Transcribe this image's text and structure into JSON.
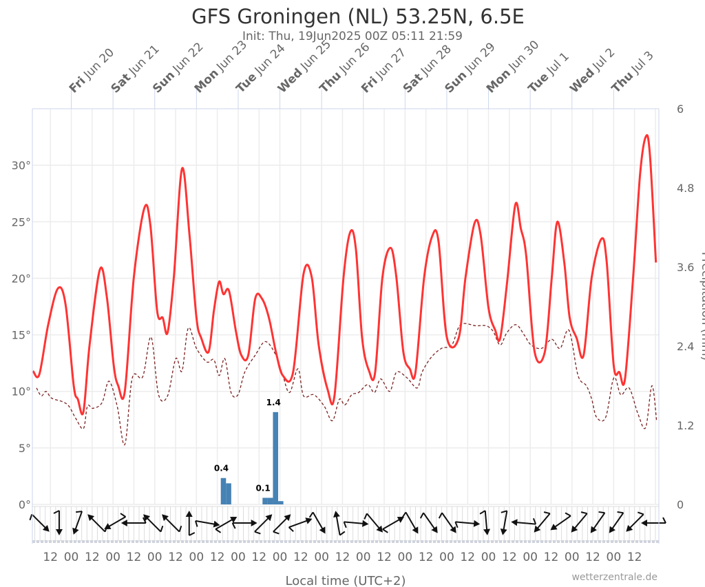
{
  "chart_data": {
    "type": "line",
    "title": "GFS Groningen (NL) 53.25N, 6.5E",
    "subtitle": "Init: Thu, 19Jun2025 00Z 05:11 21:59",
    "xlabel": "Local time (UTC+2)",
    "x_units": "hours since Thu 19 Jun 2025 02:00 local",
    "xlim": [
      0,
      360
    ],
    "ylabel_left": "",
    "ylabel_right": "Precipitation (mm)",
    "ylim_left": [
      0,
      35
    ],
    "ylim_right": [
      0,
      6
    ],
    "left_ticks": [
      "0°",
      "5°",
      "10°",
      "15°",
      "20°",
      "25°",
      "30°"
    ],
    "left_tick_values": [
      0,
      5,
      10,
      15,
      20,
      25,
      30
    ],
    "right_ticks": [
      "0",
      "1.2",
      "2.4",
      "3.6",
      "4.8",
      "6"
    ],
    "right_tick_values": [
      0,
      1.2,
      2.4,
      3.6,
      4.8,
      6
    ],
    "grid": true,
    "day_labels": [
      {
        "dow": "Fri",
        "date": "Jun 20"
      },
      {
        "dow": "Sat",
        "date": "Jun 21"
      },
      {
        "dow": "Sun",
        "date": "Jun 22"
      },
      {
        "dow": "Mon",
        "date": "Jun 23"
      },
      {
        "dow": "Tue",
        "date": "Jun 24"
      },
      {
        "dow": "Wed",
        "date": "Jun 25"
      },
      {
        "dow": "Thu",
        "date": "Jun 26"
      },
      {
        "dow": "Fri",
        "date": "Jun 27"
      },
      {
        "dow": "Sat",
        "date": "Jun 28"
      },
      {
        "dow": "Sun",
        "date": "Jun 29"
      },
      {
        "dow": "Mon",
        "date": "Jun 30"
      },
      {
        "dow": "Tue",
        "date": "Jul 1"
      },
      {
        "dow": "Wed",
        "date": "Jul 2"
      },
      {
        "dow": "Thu",
        "date": "Jul 3"
      }
    ],
    "hour_labels": [
      "12",
      "00",
      "12",
      "00",
      "12",
      "00",
      "12",
      "00",
      "12",
      "00",
      "12",
      "00",
      "12",
      "00",
      "12",
      "00",
      "12",
      "00",
      "12",
      "00",
      "12",
      "00",
      "12",
      "00",
      "12",
      "00",
      "12",
      "00",
      "12"
    ],
    "series": [
      {
        "name": "Temperature",
        "color": "#ff3333",
        "style": "solid",
        "points": [
          [
            0,
            11.8
          ],
          [
            3.6,
            11.5
          ],
          [
            8.7,
            15.9
          ],
          [
            14.3,
            19.1
          ],
          [
            18.7,
            17.7
          ],
          [
            23.4,
            10.5
          ],
          [
            25.8,
            9.3
          ],
          [
            29,
            8.2
          ],
          [
            32.5,
            14.1
          ],
          [
            38.5,
            20.8
          ],
          [
            42.5,
            18.3
          ],
          [
            46.4,
            12.3
          ],
          [
            49,
            10.5
          ],
          [
            52.8,
            10.0
          ],
          [
            58,
            20.1
          ],
          [
            64,
            26.2
          ],
          [
            67.5,
            24.7
          ],
          [
            71.4,
            17.1
          ],
          [
            74.6,
            16.5
          ],
          [
            77.4,
            15.2
          ],
          [
            81,
            20.1
          ],
          [
            85.7,
            29.7
          ],
          [
            90,
            23.8
          ],
          [
            94,
            16.5
          ],
          [
            96.8,
            14.7
          ],
          [
            101,
            13.5
          ],
          [
            104,
            17.1
          ],
          [
            107,
            19.7
          ],
          [
            109.5,
            18.6
          ],
          [
            112.7,
            18.9
          ],
          [
            116.7,
            15.3
          ],
          [
            119.8,
            13.2
          ],
          [
            123.8,
            13.2
          ],
          [
            127.8,
            18.2
          ],
          [
            131.7,
            18.2
          ],
          [
            135.7,
            16.5
          ],
          [
            139.7,
            13.5
          ],
          [
            143.7,
            11.4
          ],
          [
            149.6,
            11.7
          ],
          [
            155.6,
            20.4
          ],
          [
            160.3,
            20.1
          ],
          [
            164.3,
            14.1
          ],
          [
            169.4,
            10.2
          ],
          [
            173.4,
            9.6
          ],
          [
            178.6,
            20.1
          ],
          [
            182.5,
            24.1
          ],
          [
            185.7,
            22.6
          ],
          [
            189.3,
            14.7
          ],
          [
            193.3,
            11.8
          ],
          [
            196.8,
            11.7
          ],
          [
            201,
            20.1
          ],
          [
            205.6,
            22.7
          ],
          [
            209,
            20.1
          ],
          [
            213,
            13.5
          ],
          [
            216.7,
            12.0
          ],
          [
            220,
            11.7
          ],
          [
            225,
            20.1
          ],
          [
            229.8,
            23.8
          ],
          [
            233.3,
            23.2
          ],
          [
            238,
            14.8
          ],
          [
            244.8,
            14.7
          ],
          [
            248.8,
            20.1
          ],
          [
            254,
            24.9
          ],
          [
            257.5,
            23.8
          ],
          [
            262,
            17.4
          ],
          [
            265.9,
            15.4
          ],
          [
            268.7,
            14.7
          ],
          [
            272.6,
            19.5
          ],
          [
            277.4,
            26.5
          ],
          [
            280.6,
            24.4
          ],
          [
            283.7,
            22.0
          ],
          [
            288.5,
            13.5
          ],
          [
            294.4,
            13.5
          ],
          [
            298.4,
            20.1
          ],
          [
            301.6,
            25.0
          ],
          [
            305.6,
            21.4
          ],
          [
            308.7,
            16.5
          ],
          [
            312.7,
            14.7
          ],
          [
            316.7,
            13.2
          ],
          [
            321.4,
            20.1
          ],
          [
            327,
            23.5
          ],
          [
            330,
            21.4
          ],
          [
            334,
            12.3
          ],
          [
            337.3,
            11.7
          ],
          [
            340.5,
            11.1
          ],
          [
            345.2,
            20.1
          ],
          [
            349.2,
            29.2
          ],
          [
            352.4,
            32.5
          ],
          [
            354.8,
            31.0
          ],
          [
            358.3,
            21.4
          ]
        ]
      },
      {
        "name": "Dew point",
        "color": "#7a1f1f",
        "style": "dashed",
        "points": [
          [
            2,
            10.3
          ],
          [
            4.8,
            9.6
          ],
          [
            7.5,
            10.0
          ],
          [
            10.7,
            9.4
          ],
          [
            16.7,
            9.1
          ],
          [
            20.6,
            8.7
          ],
          [
            24.6,
            7.6
          ],
          [
            29,
            6.7
          ],
          [
            31.3,
            8.7
          ],
          [
            34.5,
            8.5
          ],
          [
            39.7,
            9.0
          ],
          [
            43.7,
            10.9
          ],
          [
            48.4,
            8.7
          ],
          [
            52.8,
            5.3
          ],
          [
            57.1,
            11.2
          ],
          [
            63.1,
            11.3
          ],
          [
            67.9,
            14.8
          ],
          [
            72.2,
            9.7
          ],
          [
            77.4,
            9.6
          ],
          [
            82.1,
            12.9
          ],
          [
            85.7,
            11.8
          ],
          [
            89.3,
            15.6
          ],
          [
            94,
            13.8
          ],
          [
            100,
            12.6
          ],
          [
            104,
            12.8
          ],
          [
            107.1,
            11.4
          ],
          [
            110.3,
            12.9
          ],
          [
            113.9,
            9.9
          ],
          [
            117.9,
            9.7
          ],
          [
            121.8,
            11.7
          ],
          [
            127.8,
            13.2
          ],
          [
            133.7,
            14.4
          ],
          [
            139.7,
            13.2
          ],
          [
            143.7,
            11.4
          ],
          [
            147.6,
            9.9
          ],
          [
            152.4,
            12.0
          ],
          [
            155.6,
            9.6
          ],
          [
            161.5,
            9.7
          ],
          [
            167.5,
            8.7
          ],
          [
            172.2,
            7.4
          ],
          [
            176.2,
            9.3
          ],
          [
            179.4,
            8.8
          ],
          [
            183.3,
            9.7
          ],
          [
            187.3,
            9.9
          ],
          [
            192.5,
            10.6
          ],
          [
            196.4,
            9.9
          ],
          [
            200,
            11.1
          ],
          [
            205.2,
            10.0
          ],
          [
            209.1,
            11.7
          ],
          [
            215.1,
            11.2
          ],
          [
            221,
            10.3
          ],
          [
            223.8,
            11.7
          ],
          [
            229,
            13.0
          ],
          [
            234.9,
            13.8
          ],
          [
            240.9,
            14.1
          ],
          [
            246,
            15.9
          ],
          [
            254.8,
            15.8
          ],
          [
            260.7,
            15.8
          ],
          [
            264.7,
            15.3
          ],
          [
            268.7,
            14.1
          ],
          [
            272.6,
            15.2
          ],
          [
            277.8,
            15.9
          ],
          [
            282.5,
            15.0
          ],
          [
            286.5,
            14.1
          ],
          [
            292.5,
            13.8
          ],
          [
            298.4,
            14.6
          ],
          [
            303.2,
            13.8
          ],
          [
            308.3,
            15.4
          ],
          [
            313.5,
            11.4
          ],
          [
            318.3,
            10.5
          ],
          [
            321.4,
            9.3
          ],
          [
            324.2,
            7.7
          ],
          [
            329.4,
            7.7
          ],
          [
            334.1,
            11.2
          ],
          [
            338.1,
            9.7
          ],
          [
            342.9,
            10.3
          ],
          [
            348,
            8.0
          ],
          [
            352.4,
            6.8
          ],
          [
            356,
            10.5
          ],
          [
            358.7,
            7.4
          ]
        ]
      }
    ],
    "precipitation": {
      "name": "Precipitation",
      "color": "#4682b4",
      "bar_hours": 3,
      "bars": [
        {
          "hour": 108,
          "value": 0.4,
          "label": "0.4"
        },
        {
          "hour": 111,
          "value": 0.32,
          "label": ""
        },
        {
          "hour": 132,
          "value": 0.1,
          "label": "0.1"
        },
        {
          "hour": 135,
          "value": 0.1,
          "label": ""
        },
        {
          "hour": 138,
          "value": 1.4,
          "label": "1.4"
        },
        {
          "hour": 141,
          "value": 0.05,
          "label": ""
        }
      ]
    },
    "wind_direction_deg": [
      135,
      180,
      200,
      315,
      240,
      270,
      315,
      315,
      0,
      100,
      60,
      90,
      45,
      45,
      70,
      150,
      350,
      95,
      140,
      60,
      150,
      145,
      145,
      95,
      175,
      190,
      275,
      220,
      235,
      220,
      215,
      215,
      225,
      270
    ],
    "watermark": "wetterzentrale.de"
  }
}
